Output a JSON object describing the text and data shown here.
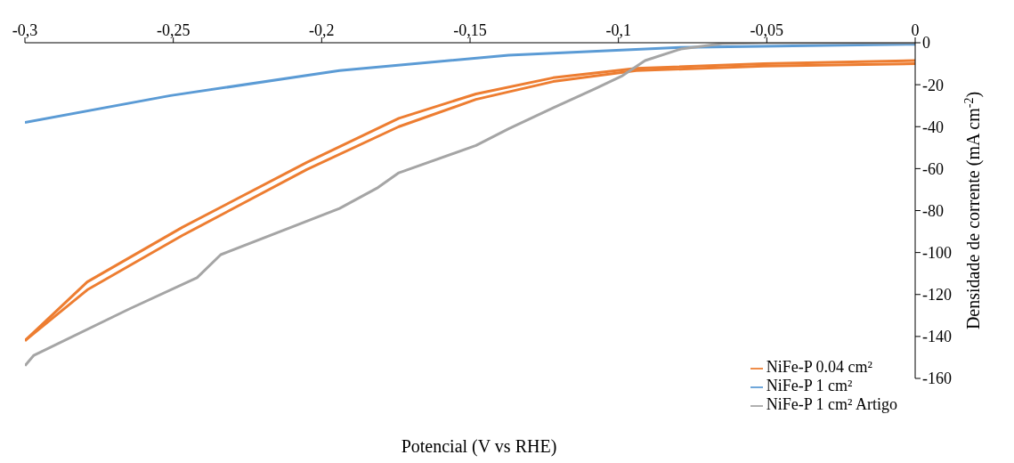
{
  "chart_data": {
    "type": "line",
    "xlabel": "Potencial (V vs RHE)",
    "ylabel": "Densidade de corrente (mA cm$^{-2}$)",
    "xlim": [
      -0.3,
      0
    ],
    "ylim": [
      -160,
      0
    ],
    "xticks": [
      {
        "value": -0.3,
        "label": "-0,3"
      },
      {
        "value": -0.25,
        "label": "-0,25"
      },
      {
        "value": -0.2,
        "label": "-0,2"
      },
      {
        "value": -0.15,
        "label": "-0,15"
      },
      {
        "value": -0.1,
        "label": "-0,1"
      },
      {
        "value": -0.05,
        "label": "-0,05"
      },
      0
    ],
    "yticks": [
      0,
      -20,
      -40,
      -60,
      -80,
      -100,
      -120,
      -140,
      -160
    ],
    "grid": false,
    "legend": "bottom right",
    "marker": "none",
    "line_style": "solid",
    "series": [
      {
        "name": "NiFe-P 0.04 cm²",
        "color": "#ed7d31",
        "x": [
          -0.3,
          -0.279,
          -0.247,
          -0.205,
          -0.174,
          -0.148,
          -0.122,
          -0.094,
          -0.051,
          0
        ],
        "values": [
          -142,
          -114,
          -88,
          -57,
          -36,
          -24.4,
          -16.7,
          -12.2,
          -10,
          -8.5
        ]
      },
      {
        "color": "#ed7d31",
        "x": [
          -0.3,
          -0.279,
          -0.247,
          -0.205,
          -0.174,
          -0.148,
          -0.122,
          -0.094,
          -0.051,
          0
        ],
        "values": [
          -142,
          -117.8,
          -91.9,
          -60.4,
          -40,
          -27,
          -18.5,
          -13.3,
          -11.1,
          -10
        ]
      },
      {
        "name": "NiFe-P 1 cm²",
        "color": "#5b9bd5",
        "x": [
          -0.3,
          -0.251,
          -0.194,
          -0.137,
          -0.079,
          0
        ],
        "values": [
          -38,
          -25.2,
          -13.3,
          -5.9,
          -2.2,
          -0.7
        ]
      },
      {
        "name": "NiFe-P 1 cm² Artigo",
        "color": "#a5a5a5",
        "x": [
          -0.3,
          -0.297,
          -0.265,
          -0.242,
          -0.234,
          -0.194,
          -0.181,
          -0.174,
          -0.148,
          -0.137,
          -0.122,
          -0.108,
          -0.099,
          -0.091,
          -0.079,
          -0.065,
          -0.051,
          0
        ],
        "values": [
          -154,
          -149,
          -127,
          -112,
          -101,
          -79,
          -69,
          -62,
          -49,
          -41,
          -31,
          -22,
          -16,
          -8.5,
          -3,
          -0.4,
          0,
          0
        ]
      }
    ]
  }
}
